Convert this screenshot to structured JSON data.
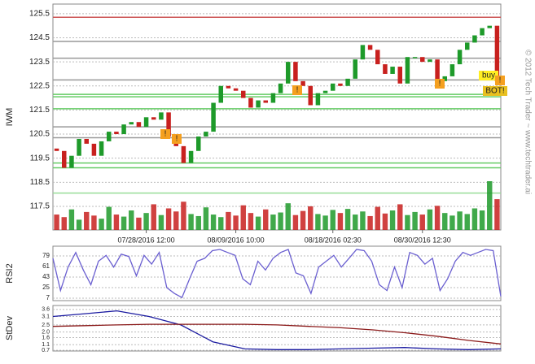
{
  "chart_data": [
    {
      "type": "candlestick",
      "y_label": "IWM",
      "categories": [
        null,
        null,
        null,
        null,
        null,
        null,
        null,
        null,
        null,
        null,
        null,
        null,
        "07/28/2016 12:00",
        null,
        null,
        null,
        null,
        null,
        null,
        null,
        null,
        null,
        null,
        null,
        "08/09/2016 10:00",
        null,
        null,
        null,
        null,
        null,
        null,
        null,
        null,
        null,
        null,
        null,
        null,
        "08/18/2016 02:30",
        null,
        null,
        null,
        null,
        null,
        null,
        null,
        null,
        null,
        null,
        null,
        "08/30/2016 12:30",
        null,
        null,
        null,
        null,
        null,
        null,
        null,
        null,
        null,
        null
      ],
      "open": [
        119.9,
        119.8,
        119.1,
        119.6,
        120.3,
        120.1,
        119.6,
        120.2,
        120.6,
        120.5,
        120.9,
        121.0,
        120.8,
        121.2,
        121.1,
        121.4,
        120.4,
        120.0,
        119.3,
        119.8,
        120.4,
        120.6,
        121.8,
        122.5,
        122.4,
        122.3,
        122.0,
        121.6,
        121.9,
        121.8,
        122.2,
        122.6,
        123.5,
        122.7,
        122.5,
        121.7,
        122.2,
        122.3,
        122.6,
        122.5,
        122.8,
        123.6,
        124.2,
        124.0,
        123.4,
        123.0,
        123.3,
        122.6,
        123.7,
        123.7,
        123.5,
        123.6,
        122.7,
        122.9,
        123.4,
        124.0,
        124.3,
        124.6,
        124.9,
        125.0
      ],
      "close": [
        119.8,
        119.1,
        119.6,
        120.3,
        120.1,
        119.6,
        120.2,
        120.6,
        120.5,
        120.9,
        121.0,
        120.8,
        121.2,
        121.1,
        121.4,
        120.4,
        120.0,
        119.3,
        119.8,
        120.4,
        120.6,
        121.8,
        122.5,
        122.4,
        122.3,
        122.0,
        121.6,
        121.9,
        121.8,
        122.2,
        122.6,
        123.5,
        122.7,
        122.5,
        121.7,
        122.2,
        122.3,
        122.6,
        122.5,
        122.8,
        123.6,
        124.2,
        124.0,
        123.4,
        123.0,
        123.3,
        122.6,
        123.7,
        123.7,
        123.5,
        123.6,
        122.7,
        122.9,
        123.4,
        124.0,
        124.3,
        124.6,
        124.9,
        125.0,
        122.7
      ],
      "volume": [
        30,
        25,
        40,
        20,
        35,
        28,
        22,
        45,
        30,
        26,
        38,
        24,
        33,
        50,
        29,
        42,
        36,
        55,
        31,
        27,
        44,
        30,
        25,
        35,
        28,
        48,
        33,
        26,
        40,
        30,
        34,
        52,
        29,
        37,
        46,
        31,
        28,
        39,
        33,
        41,
        30,
        36,
        27,
        45,
        32,
        38,
        50,
        29,
        35,
        30,
        40,
        47,
        33,
        28,
        36,
        31,
        42,
        38,
        95,
        60
      ],
      "up_color": "#1e9a2a",
      "down_color": "#c8201e",
      "ylim": [
        116.52,
        125.9
      ],
      "yticks": [
        117.5,
        118.5,
        119.5,
        120.5,
        121.5,
        122.5,
        123.5,
        124.5,
        125.5
      ],
      "grid": true,
      "levels": [
        {
          "value": 125.35,
          "color": "#cc5555"
        },
        {
          "value": 124.35,
          "color": "#999999"
        },
        {
          "value": 123.65,
          "color": "#999999"
        },
        {
          "value": 122.75,
          "color": "#999999"
        },
        {
          "value": 120.8,
          "color": "#999999"
        },
        {
          "value": 120.35,
          "color": "#999999"
        },
        {
          "value": 122.15,
          "color": "#66cc66"
        },
        {
          "value": 122.05,
          "color": "#66cc66"
        },
        {
          "value": 121.55,
          "color": "#66cc66"
        },
        {
          "value": 119.3,
          "color": "#66cc66"
        },
        {
          "value": 119.1,
          "color": "#66cc66"
        },
        {
          "value": 118.05,
          "color": "#99dd99"
        }
      ]
    },
    {
      "type": "line",
      "y_label": "RSI2",
      "values": [
        75,
        20,
        60,
        85,
        55,
        30,
        70,
        80,
        60,
        82,
        78,
        45,
        80,
        65,
        85,
        25,
        15,
        8,
        40,
        70,
        75,
        88,
        90,
        85,
        80,
        40,
        30,
        70,
        55,
        75,
        85,
        90,
        50,
        45,
        15,
        60,
        70,
        80,
        60,
        75,
        90,
        88,
        70,
        30,
        20,
        60,
        25,
        85,
        80,
        65,
        75,
        20,
        40,
        70,
        85,
        80,
        85,
        90,
        88,
        10
      ],
      "color": "#6a5fd0",
      "ylim": [
        2.8,
        95.6
      ],
      "yticks": [
        7,
        25,
        43,
        61,
        79
      ],
      "grid": true
    },
    {
      "type": "line",
      "y_label": "StDev",
      "series": [
        {
          "color": "#1a1aa0",
          "values": [
            3.1,
            3.3,
            3.5,
            3.1,
            2.5,
            1.3,
            0.8,
            0.75,
            0.75,
            0.8,
            0.85,
            0.9,
            0.8,
            0.75,
            0.8
          ]
        },
        {
          "color": "#8b1a1a",
          "values": [
            2.4,
            2.45,
            2.5,
            2.55,
            2.55,
            2.55,
            2.55,
            2.5,
            2.4,
            2.3,
            2.15,
            1.95,
            1.7,
            1.4,
            1.15
          ]
        }
      ],
      "ylim": [
        0.65,
        3.88
      ],
      "yticks": [
        0.7,
        1.1,
        1.6,
        {
          "value": 2,
          "label": "2.0"
        },
        2.5,
        3.1,
        3.6
      ],
      "grid": true
    }
  ],
  "annotations": [
    "buy",
    "BOT!",
    "!",
    "!",
    "!",
    "!",
    "!"
  ],
  "copyright": "© 2012 Tech Trader ~ www.techtrader.ai"
}
